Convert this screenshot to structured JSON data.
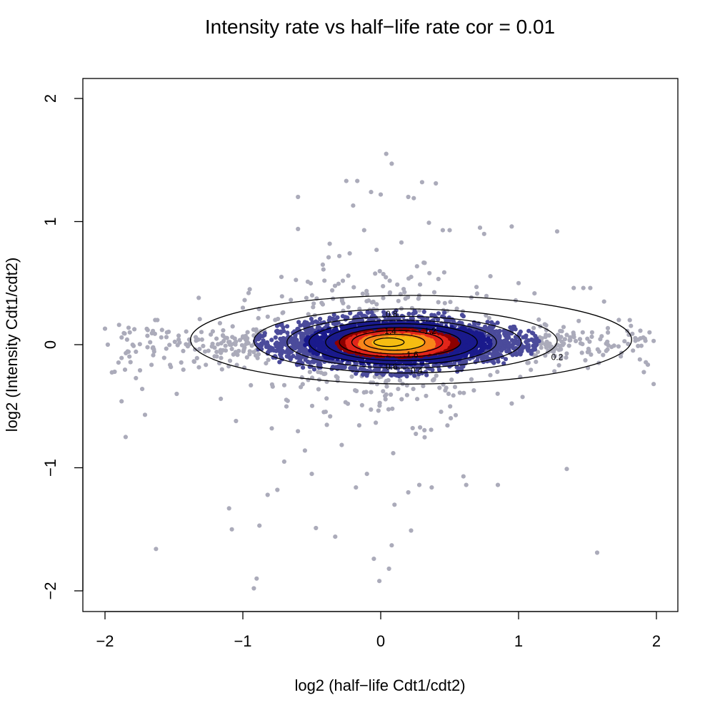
{
  "chart_data": {
    "type": "scatter",
    "title": "Intensity rate vs half−life rate  cor =  0.01",
    "xlabel": "log2 (half−life Cdt1/cdt2)",
    "ylabel": "log2 (Intensity Cdt1/cdt2)",
    "xlim": [
      -2.1,
      2.15
    ],
    "ylim": [
      -2.15,
      2.15
    ],
    "x_ticks": [
      -2,
      -1,
      0,
      1,
      2
    ],
    "x_tick_labels": [
      "−2",
      "−1",
      "0",
      "1",
      "2"
    ],
    "y_ticks": [
      -2,
      -1,
      0,
      1,
      2
    ],
    "y_tick_labels": [
      "−2",
      "−1",
      "0",
      "1",
      "2"
    ],
    "correlation": 0.01,
    "grid": false,
    "legend": "none",
    "point_colors": {
      "outer": "#ababba",
      "low_density": "#4b4b9b",
      "mid_density": "#1a1a8c",
      "high_density_1": "#8b0000",
      "high_density_2": "#e2261a",
      "high_density_3": "#f7861a",
      "peak": "#f5bd12"
    },
    "density_contour_levels": [
      "0.2",
      "0.4",
      "0.6",
      "0.8",
      "1",
      "1.2",
      "1.4",
      "1.6",
      "1.8"
    ],
    "contour_labels": [
      {
        "text": "0.2",
        "x": 1.28,
        "y": -0.1
      },
      {
        "text": "0.4",
        "x": 0.26,
        "y": -0.21
      },
      {
        "text": "0.6",
        "x": 0.08,
        "y": -0.18
      },
      {
        "text": "0.8",
        "x": 0.08,
        "y": 0.25
      },
      {
        "text": "1.2",
        "x": 0.36,
        "y": 0.11
      },
      {
        "text": "1.4",
        "x": 0.07,
        "y": 0.11
      },
      {
        "text": "1.6",
        "x": 0.23,
        "y": -0.08
      }
    ],
    "outlier_points": [
      [
        -2.0,
        0.13
      ],
      [
        -1.98,
        0.0
      ],
      [
        -1.93,
        -0.22
      ],
      [
        -1.88,
        -0.46
      ],
      [
        -1.85,
        -0.75
      ],
      [
        -1.82,
        0.1
      ],
      [
        -1.73,
        -0.36
      ],
      [
        -1.71,
        -0.57
      ],
      [
        -1.63,
        -1.66
      ],
      [
        -1.62,
        0.2
      ],
      [
        -1.55,
        0.1
      ],
      [
        -1.48,
        -0.4
      ],
      [
        -1.32,
        0.38
      ],
      [
        -1.25,
        -0.05
      ],
      [
        -1.16,
        -0.44
      ],
      [
        -1.1,
        -1.33
      ],
      [
        -1.08,
        -1.5
      ],
      [
        -1.05,
        -0.62
      ],
      [
        -1.0,
        0.3
      ],
      [
        -0.95,
        0.45
      ],
      [
        -0.92,
        -1.98
      ],
      [
        -0.9,
        -1.9
      ],
      [
        -0.88,
        -1.47
      ],
      [
        -0.82,
        -1.22
      ],
      [
        -0.79,
        -0.68
      ],
      [
        -0.75,
        -1.18
      ],
      [
        -0.72,
        0.55
      ],
      [
        -0.7,
        -0.95
      ],
      [
        -0.6,
        1.2
      ],
      [
        -0.6,
        0.94
      ],
      [
        -0.55,
        -0.86
      ],
      [
        -0.5,
        -1.05
      ],
      [
        -0.47,
        -1.49
      ],
      [
        -0.42,
        0.65
      ],
      [
        -0.37,
        0.82
      ],
      [
        -0.33,
        -1.56
      ],
      [
        -0.3,
        0.72
      ],
      [
        -0.25,
        1.33
      ],
      [
        -0.2,
        1.13
      ],
      [
        -0.18,
        -1.16
      ],
      [
        -0.17,
        1.33
      ],
      [
        -0.12,
        0.93
      ],
      [
        -0.1,
        -1.05
      ],
      [
        -0.07,
        1.24
      ],
      [
        -0.05,
        -1.74
      ],
      [
        -0.03,
        0.77
      ],
      [
        0.0,
        1.22
      ],
      [
        -0.01,
        -1.92
      ],
      [
        0.04,
        1.55
      ],
      [
        0.06,
        -1.82
      ],
      [
        0.08,
        1.47
      ],
      [
        0.08,
        -1.63
      ],
      [
        0.1,
        -1.3
      ],
      [
        0.15,
        0.83
      ],
      [
        0.2,
        1.2
      ],
      [
        0.2,
        -1.2
      ],
      [
        0.22,
        -1.51
      ],
      [
        0.24,
        1.19
      ],
      [
        0.28,
        -1.14
      ],
      [
        0.3,
        1.32
      ],
      [
        0.35,
        0.99
      ],
      [
        0.37,
        -1.16
      ],
      [
        0.4,
        1.31
      ],
      [
        0.45,
        0.93
      ],
      [
        0.5,
        0.93
      ],
      [
        0.6,
        -1.07
      ],
      [
        0.62,
        -1.14
      ],
      [
        0.72,
        0.95
      ],
      [
        0.75,
        0.9
      ],
      [
        0.85,
        -1.14
      ],
      [
        0.95,
        0.96
      ],
      [
        1.0,
        0.5
      ],
      [
        1.28,
        0.92
      ],
      [
        1.35,
        -1.01
      ],
      [
        1.4,
        0.46
      ],
      [
        1.47,
        0.46
      ],
      [
        1.52,
        0.46
      ],
      [
        1.57,
        -1.69
      ],
      [
        1.62,
        0.35
      ],
      [
        1.8,
        0.08
      ],
      [
        1.88,
        -0.12
      ],
      [
        1.95,
        0.1
      ],
      [
        1.98,
        -0.32
      ],
      [
        1.98,
        0.03
      ]
    ]
  }
}
